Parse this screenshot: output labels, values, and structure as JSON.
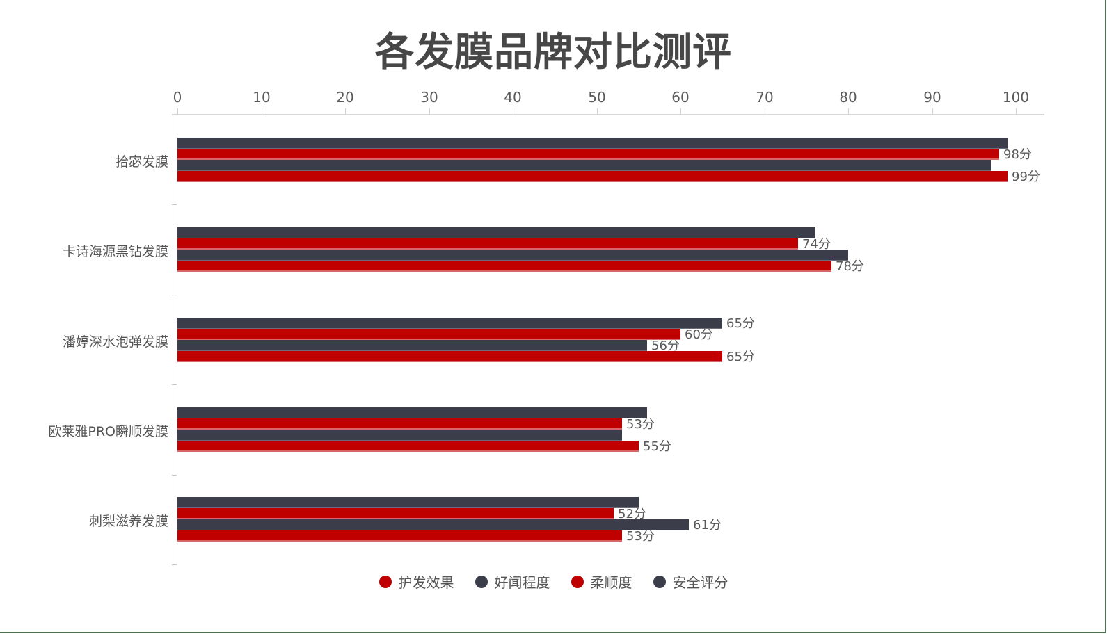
{
  "title": "各发膜品牌对比测评",
  "colors": {
    "red": "#c00000",
    "dark": "#3b3d4b"
  },
  "legend": [
    {
      "label": "护发效果",
      "color": "#c00000"
    },
    {
      "label": "好闻程度",
      "color": "#3b3d4b"
    },
    {
      "label": "柔顺度",
      "color": "#c00000"
    },
    {
      "label": "安全评分",
      "color": "#3b3d4b"
    }
  ],
  "chart_data": {
    "type": "bar",
    "orientation": "horizontal",
    "title": "各发膜品牌对比测评",
    "xlabel": "",
    "ylabel": "",
    "xlim": [
      0,
      100
    ],
    "x_ticks": [
      "0",
      "10",
      "20",
      "30",
      "40",
      "50",
      "60",
      "70",
      "80",
      "90",
      "100"
    ],
    "x_axis_position": "top",
    "grid": false,
    "legend_position": "bottom",
    "value_label_suffix": "分",
    "categories": [
      "拾宓发膜",
      "卡诗海源黑钻发膜",
      "潘婷深水泡弹发膜",
      "欧莱雅PRO瞬顺发膜",
      "刺梨滋养发膜"
    ],
    "series": [
      {
        "name": "护发效果",
        "color": "#c00000",
        "values": [
          99,
          78,
          65,
          55,
          53
        ]
      },
      {
        "name": "好闻程度",
        "color": "#3b3d4b",
        "values": [
          97,
          80,
          56,
          53,
          61
        ]
      },
      {
        "name": "柔顺度",
        "color": "#c00000",
        "values": [
          98,
          74,
          60,
          53,
          52
        ]
      },
      {
        "name": "安全评分",
        "color": "#3b3d4b",
        "values": [
          99,
          76,
          65,
          56,
          55
        ]
      }
    ],
    "visible_value_labels": [
      {
        "category": "拾宓发膜",
        "series": "柔顺度",
        "text": "98分"
      },
      {
        "category": "拾宓发膜",
        "series": "护发效果",
        "text": "99分"
      },
      {
        "category": "卡诗海源黑钻发膜",
        "series": "柔顺度",
        "text": "74分"
      },
      {
        "category": "卡诗海源黑钻发膜",
        "series": "护发效果",
        "text": "78分"
      },
      {
        "category": "潘婷深水泡弹发膜",
        "series": "安全评分",
        "text": "65分"
      },
      {
        "category": "潘婷深水泡弹发膜",
        "series": "柔顺度",
        "text": "60分"
      },
      {
        "category": "潘婷深水泡弹发膜",
        "series": "好闻程度",
        "text": "56分"
      },
      {
        "category": "潘婷深水泡弹发膜",
        "series": "护发效果",
        "text": "65分"
      },
      {
        "category": "欧莱雅PRO瞬顺发膜",
        "series": "柔顺度",
        "text": "53分"
      },
      {
        "category": "欧莱雅PRO瞬顺发膜",
        "series": "护发效果",
        "text": "55分"
      },
      {
        "category": "刺梨滋养发膜",
        "series": "柔顺度",
        "text": "52分"
      },
      {
        "category": "刺梨滋养发膜",
        "series": "好闻程度",
        "text": "61分"
      },
      {
        "category": "刺梨滋养发膜",
        "series": "护发效果",
        "text": "53分"
      }
    ]
  }
}
